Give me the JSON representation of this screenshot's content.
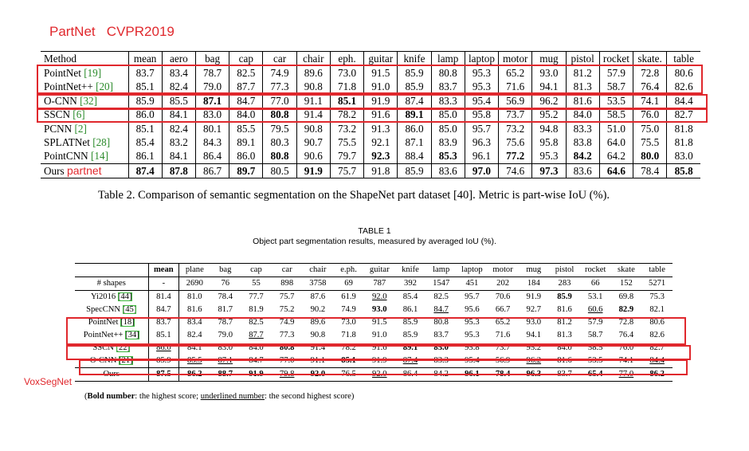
{
  "notes": {
    "partnet_header": "PartNet   CVPR2019",
    "ours_tag": "partnet",
    "voxsegnet": "VoxSegNet"
  },
  "table1": {
    "columns": [
      "Method",
      "mean",
      "aero",
      "bag",
      "cap",
      "car",
      "chair",
      "eph.",
      "guitar",
      "knife",
      "lamp",
      "laptop",
      "motor",
      "mug",
      "pistol",
      "rocket",
      "skate.",
      "table"
    ],
    "rows": [
      {
        "method": "PointNet ",
        "cite": "[19]",
        "values": [
          "83.7",
          "83.4",
          "78.7",
          "82.5",
          "74.9",
          "89.6",
          "73.0",
          "91.5",
          "85.9",
          "80.8",
          "95.3",
          "65.2",
          "93.0",
          "81.2",
          "57.9",
          "72.8",
          "80.6"
        ],
        "bold": []
      },
      {
        "method": "PointNet++ ",
        "cite": "[20]",
        "values": [
          "85.1",
          "82.4",
          "79.0",
          "87.7",
          "77.3",
          "90.8",
          "71.8",
          "91.0",
          "85.9",
          "83.7",
          "95.3",
          "71.6",
          "94.1",
          "81.3",
          "58.7",
          "76.4",
          "82.6"
        ],
        "bold": []
      },
      {
        "method": "O-CNN ",
        "cite": "[32]",
        "values": [
          "85.9",
          "85.5",
          "87.1",
          "84.7",
          "77.0",
          "91.1",
          "85.1",
          "91.9",
          "87.4",
          "83.3",
          "95.4",
          "56.9",
          "96.2",
          "81.6",
          "53.5",
          "74.1",
          "84.4"
        ],
        "bold": [
          2,
          6
        ]
      },
      {
        "method": "SSCN ",
        "cite": "[6]",
        "values": [
          "86.0",
          "84.1",
          "83.0",
          "84.0",
          "80.8",
          "91.4",
          "78.2",
          "91.6",
          "89.1",
          "85.0",
          "95.8",
          "73.7",
          "95.2",
          "84.0",
          "58.5",
          "76.0",
          "82.7"
        ],
        "bold": [
          4,
          8
        ]
      },
      {
        "method": "PCNN ",
        "cite": "[2]",
        "values": [
          "85.1",
          "82.4",
          "80.1",
          "85.5",
          "79.5",
          "90.8",
          "73.2",
          "91.3",
          "86.0",
          "85.0",
          "95.7",
          "73.2",
          "94.8",
          "83.3",
          "51.0",
          "75.0",
          "81.8"
        ],
        "bold": []
      },
      {
        "method": "SPLATNet ",
        "cite": "[28]",
        "values": [
          "85.4",
          "83.2",
          "84.3",
          "89.1",
          "80.3",
          "90.7",
          "75.5",
          "92.1",
          "87.1",
          "83.9",
          "96.3",
          "75.6",
          "95.8",
          "83.8",
          "64.0",
          "75.5",
          "81.8"
        ],
        "bold": []
      },
      {
        "method": "PointCNN ",
        "cite": "[14]",
        "values": [
          "86.1",
          "84.1",
          "86.4",
          "86.0",
          "80.8",
          "90.6",
          "79.7",
          "92.3",
          "88.4",
          "85.3",
          "96.1",
          "77.2",
          "95.3",
          "84.2",
          "64.2",
          "80.0",
          "83.0"
        ],
        "bold": [
          4,
          7,
          9,
          11,
          13,
          15
        ]
      },
      {
        "method": "Ours ",
        "cite": "",
        "values": [
          "87.4",
          "87.8",
          "86.7",
          "89.7",
          "80.5",
          "91.9",
          "75.7",
          "91.8",
          "85.9",
          "83.6",
          "97.0",
          "74.6",
          "97.3",
          "83.6",
          "64.6",
          "78.4",
          "85.8"
        ],
        "bold": [
          0,
          1,
          3,
          5,
          10,
          12,
          14,
          16
        ]
      }
    ],
    "caption": "Table 2. Comparison of semantic segmentation on the ShapeNet part dataset [40]. Metric is part-wise IoU (%)."
  },
  "table2": {
    "title": "TABLE 1",
    "subtitle": "Object part segmentation results, measured by averaged IoU (%).",
    "columns": [
      "",
      "mean",
      "plane",
      "bag",
      "cap",
      "car",
      "chair",
      "e.ph.",
      "guitar",
      "knife",
      "lamp",
      "laptop",
      "motor",
      "mug",
      "pistol",
      "rocket",
      "skate",
      "table"
    ],
    "shapes_row": [
      "# shapes",
      "-",
      "2690",
      "76",
      "55",
      "898",
      "3758",
      "69",
      "787",
      "392",
      "1547",
      "451",
      "202",
      "184",
      "283",
      "66",
      "152",
      "5271"
    ],
    "rows": [
      {
        "method": "Yi2016 ",
        "cite": "[44]",
        "values": [
          "81.4",
          "81.0",
          "78.4",
          "77.7",
          "75.7",
          "87.6",
          "61.9",
          "92.0",
          "85.4",
          "82.5",
          "95.7",
          "70.6",
          "91.9",
          "85.9",
          "53.1",
          "69.8",
          "75.3"
        ],
        "bold": [
          13
        ],
        "ul": [
          7
        ]
      },
      {
        "method": "SpecCNN ",
        "cite": "[45]",
        "values": [
          "84.7",
          "81.6",
          "81.7",
          "81.9",
          "75.2",
          "90.2",
          "74.9",
          "93.0",
          "86.1",
          "84.7",
          "95.6",
          "66.7",
          "92.7",
          "81.6",
          "60.6",
          "82.9",
          "82.1"
        ],
        "bold": [
          7,
          15
        ],
        "ul": [
          9,
          14
        ]
      },
      {
        "method": "PointNet ",
        "cite": "[18]",
        "values": [
          "83.7",
          "83.4",
          "78.7",
          "82.5",
          "74.9",
          "89.6",
          "73.0",
          "91.5",
          "85.9",
          "80.8",
          "95.3",
          "65.2",
          "93.0",
          "81.2",
          "57.9",
          "72.8",
          "80.6"
        ],
        "bold": [],
        "ul": []
      },
      {
        "method": "PointNet++ ",
        "cite": "[34]",
        "values": [
          "85.1",
          "82.4",
          "79.0",
          "87.7",
          "77.3",
          "90.8",
          "71.8",
          "91.0",
          "85.9",
          "83.7",
          "95.3",
          "71.6",
          "94.1",
          "81.3",
          "58.7",
          "76.4",
          "82.6"
        ],
        "bold": [],
        "ul": [
          3
        ]
      },
      {
        "method": "SSCN ",
        "cite": "[22]",
        "values": [
          "86.0",
          "84.1",
          "83.0",
          "84.0",
          "80.8",
          "91.4",
          "78.2",
          "91.6",
          "89.1",
          "85.0",
          "95.8",
          "73.7",
          "95.2",
          "84.0",
          "58.5",
          "76.0",
          "82.7"
        ],
        "bold": [
          4,
          8,
          9
        ],
        "ul": [
          0
        ]
      },
      {
        "method": "O-CNN ",
        "cite": "[21]",
        "values": [
          "85.9",
          "85.5",
          "87.1",
          "84.7",
          "77.0",
          "91.1",
          "85.1",
          "91.9",
          "87.4",
          "83.3",
          "95.4",
          "56.9",
          "96.2",
          "81.6",
          "53.5",
          "74.1",
          "84.4"
        ],
        "bold": [
          6
        ],
        "ul": [
          1,
          2,
          8,
          12,
          16
        ]
      },
      {
        "method": "Ours",
        "cite": "",
        "values": [
          "87.5",
          "86.2",
          "88.7",
          "91.9",
          "79.8",
          "92.0",
          "76.5",
          "92.0",
          "86.4",
          "84.2",
          "96.1",
          "78.4",
          "96.3",
          "83.7",
          "65.4",
          "77.0",
          "86.2"
        ],
        "bold": [
          0,
          1,
          2,
          3,
          5,
          10,
          11,
          12,
          14,
          16
        ],
        "ul": [
          4,
          7,
          15
        ]
      }
    ],
    "note_bold": "Bold number",
    "note_mid": ": the highest score; ",
    "note_ul": "underlined number",
    "note_end": ": the second highest score)"
  }
}
